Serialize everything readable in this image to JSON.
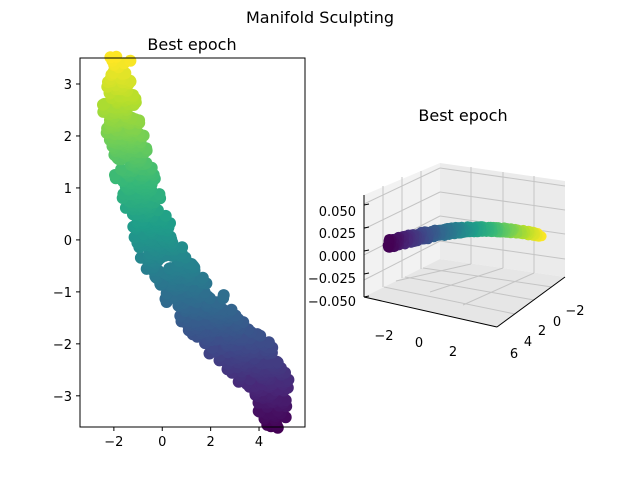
{
  "figure": {
    "suptitle": "Manifold Sculpting"
  },
  "chart_data": [
    {
      "type": "scatter",
      "title": "Best epoch",
      "xlabel": "",
      "ylabel": "",
      "xlim": [
        -3.4,
        5.9
      ],
      "ylim": [
        -3.6,
        3.5
      ],
      "xticks": [
        -2,
        0,
        2,
        4
      ],
      "yticks": [
        3,
        2,
        1,
        0,
        -1,
        -2,
        -3
      ],
      "colormap": "viridis",
      "color_by": "y",
      "centerline": [
        {
          "x": -1.9,
          "y": 3.1
        },
        {
          "x": -1.7,
          "y": 2.4
        },
        {
          "x": -1.5,
          "y": 2.0
        },
        {
          "x": -1.3,
          "y": 1.5
        },
        {
          "x": -0.9,
          "y": 0.9
        },
        {
          "x": -0.6,
          "y": 0.3
        },
        {
          "x": -0.2,
          "y": -0.1
        },
        {
          "x": 0.4,
          "y": -0.6
        },
        {
          "x": 1.2,
          "y": -1.1
        },
        {
          "x": 2.2,
          "y": -1.6
        },
        {
          "x": 3.4,
          "y": -2.2
        },
        {
          "x": 4.5,
          "y": -2.7
        },
        {
          "x": 4.6,
          "y": -3.1
        }
      ],
      "spread": 0.45,
      "n_points": 900,
      "grid": false
    },
    {
      "type": "scatter3d",
      "title": "Best epoch",
      "zticks": [
        "0.050",
        "0.025",
        "0.000",
        "−0.025",
        "−0.050"
      ],
      "xticks": [
        "−2",
        "0",
        "2"
      ],
      "yticks": [
        "−2",
        "0",
        "2",
        "4",
        "6"
      ],
      "zlim": [
        -0.05,
        0.05
      ],
      "colormap": "viridis",
      "n_points": 600,
      "grid": true
    }
  ]
}
